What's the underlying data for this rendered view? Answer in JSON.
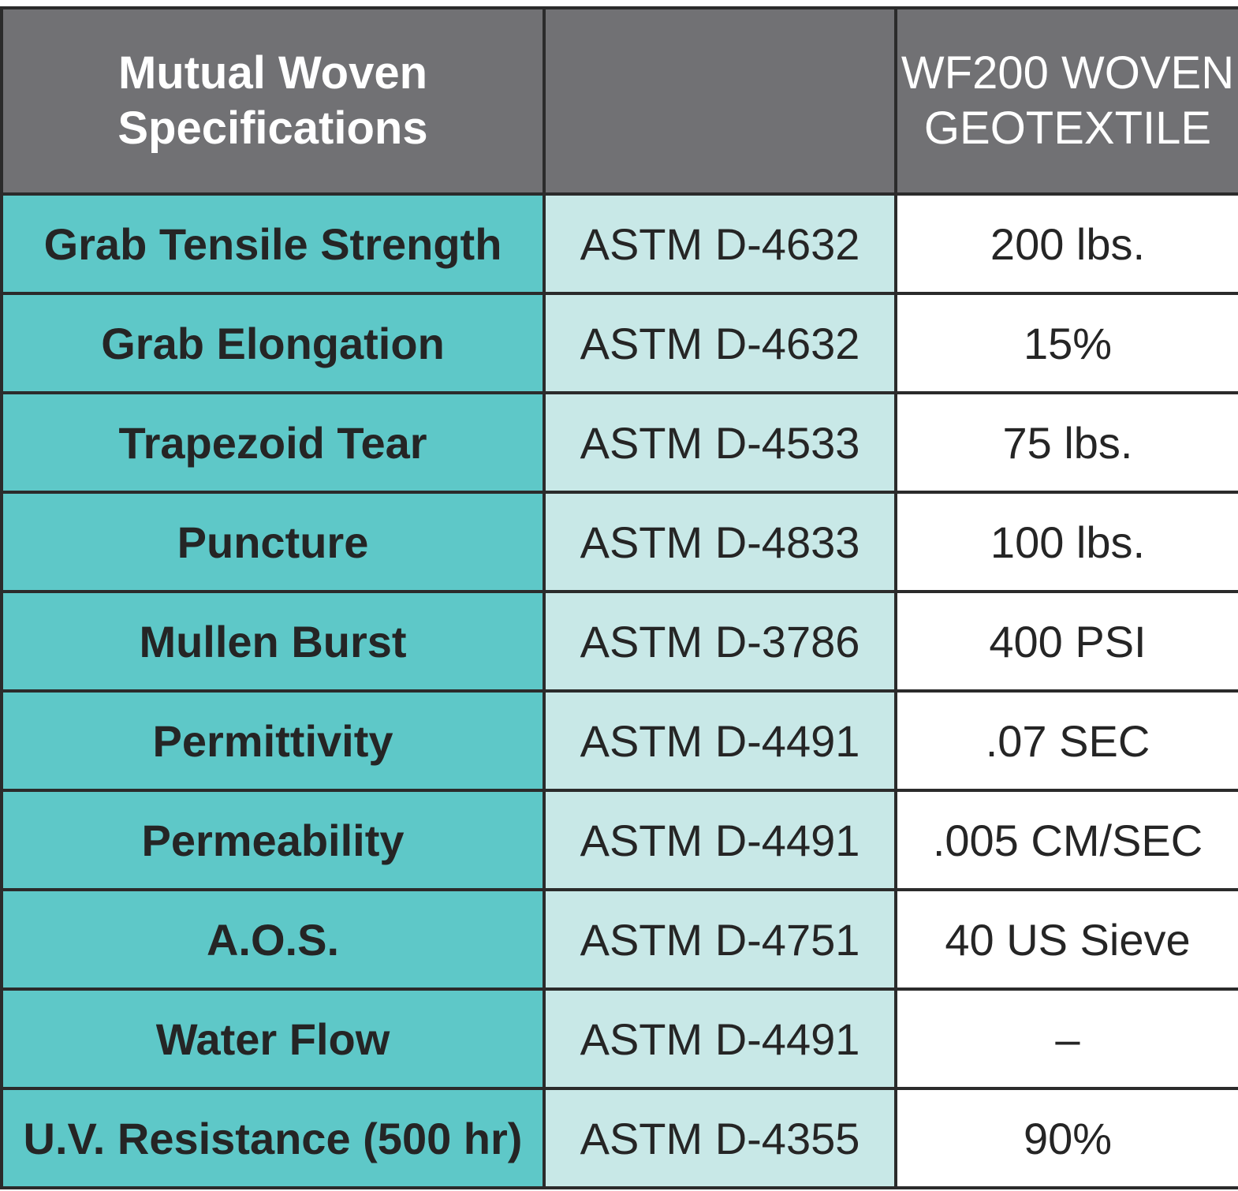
{
  "table": {
    "header": {
      "col1_lines": [
        "Mutual Woven",
        "Specifications"
      ],
      "col2": "",
      "col3_lines": [
        "WF200 WOVEN",
        "GEOTEXTILE"
      ]
    },
    "rows": [
      {
        "property": "Grab Tensile Strength",
        "method": "ASTM D-4632",
        "value": "200 lbs."
      },
      {
        "property": "Grab Elongation",
        "method": "ASTM D-4632",
        "value": "15%"
      },
      {
        "property": "Trapezoid Tear",
        "method": "ASTM D-4533",
        "value": "75 lbs."
      },
      {
        "property": "Puncture",
        "method": "ASTM D-4833",
        "value": "100 lbs."
      },
      {
        "property": "Mullen Burst",
        "method": "ASTM D-3786",
        "value": "400 PSI"
      },
      {
        "property": "Permittivity",
        "method": "ASTM D-4491",
        "value": ".07 SEC"
      },
      {
        "property": "Permeability",
        "method": "ASTM D-4491",
        "value": ".005 CM/SEC"
      },
      {
        "property": "A.O.S.",
        "method": "ASTM D-4751",
        "value": "40 US Sieve"
      },
      {
        "property": "Water Flow",
        "method": "ASTM D-4491",
        "value": "–"
      },
      {
        "property": "U.V. Resistance (500 hr)",
        "method": "ASTM D-4355",
        "value": "90%"
      }
    ]
  },
  "colors": {
    "header_bg": "#717174",
    "property_bg": "#5ec8c8",
    "method_bg": "#c8e8e7",
    "value_bg": "#ffffff",
    "border": "#2b2b2b",
    "text_dark": "#252525",
    "text_light": "#ffffff"
  }
}
